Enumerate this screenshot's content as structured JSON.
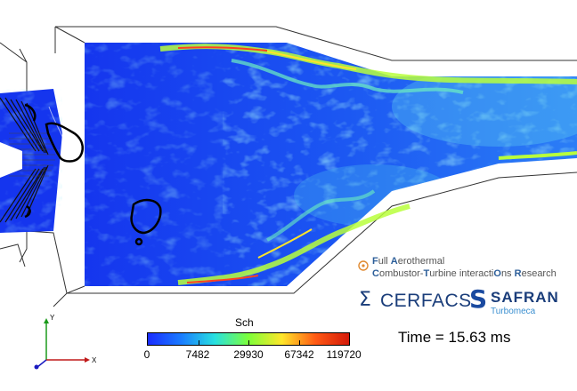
{
  "colorbar": {
    "title": "Sch",
    "ticks": [
      "0",
      "7482",
      "29930",
      "67342",
      "119720"
    ],
    "colors": [
      "#1a2cff",
      "#1a7dff",
      "#28e0e0",
      "#7dff3a",
      "#ffe62a",
      "#ff5a14",
      "#d41a0a"
    ]
  },
  "time": {
    "label": "Time = 15.63 ms"
  },
  "project": {
    "parts": [
      {
        "letter": "F",
        "rest": "ull "
      },
      {
        "letter": "A",
        "rest": "erothermal"
      }
    ],
    "parts2": [
      {
        "letter": "C",
        "rest": "ombustor-"
      },
      {
        "letter": "T",
        "rest": "urbine interacti"
      },
      {
        "letter": "O",
        "rest": "ns "
      },
      {
        "letter": "R",
        "rest": "esearch"
      }
    ]
  },
  "logos": {
    "cerfacs": "CERFACS",
    "safran": "SAFRAN",
    "safran_sub": "Turbomeca"
  },
  "axes": {
    "y": "Y",
    "x": "X"
  }
}
